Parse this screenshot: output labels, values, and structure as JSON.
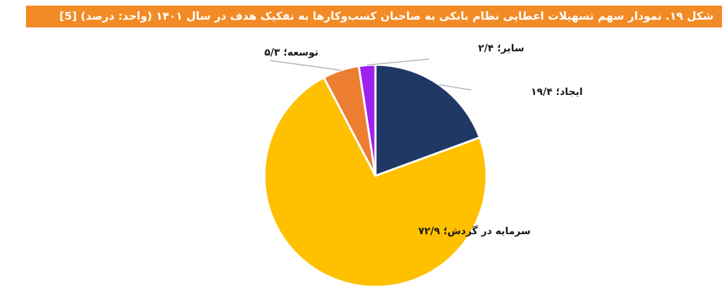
{
  "header": {
    "title": "شکل ۱۹. نمودار سهم تسهیلات اعطایی نظام بانکی به صاحبان کسب‌وکارها به تفکیک هدف در سال ۱۴۰۱ (واحد: درصد) [5]",
    "bar_color": "#f28b26"
  },
  "chart_data": {
    "type": "pie",
    "title": "",
    "start_angle_deg": 0,
    "direction": "clockwise",
    "legend": "none",
    "slices": [
      {
        "name": "ایجاد",
        "value": 19.4,
        "label": "ایجاد؛ ۱۹/۴",
        "color": "#203864"
      },
      {
        "name": "سرمایه در گردش",
        "value": 72.9,
        "label": "سرمایه در گردش؛ ۷۲/۹",
        "color": "#ffc000"
      },
      {
        "name": "توسعه",
        "value": 5.3,
        "label": "توسعه؛ ۵/۳",
        "color": "#ed7d31"
      },
      {
        "name": "سایر",
        "value": 2.4,
        "label": "سایر؛ ۲/۴",
        "color": "#a020f0"
      }
    ]
  }
}
